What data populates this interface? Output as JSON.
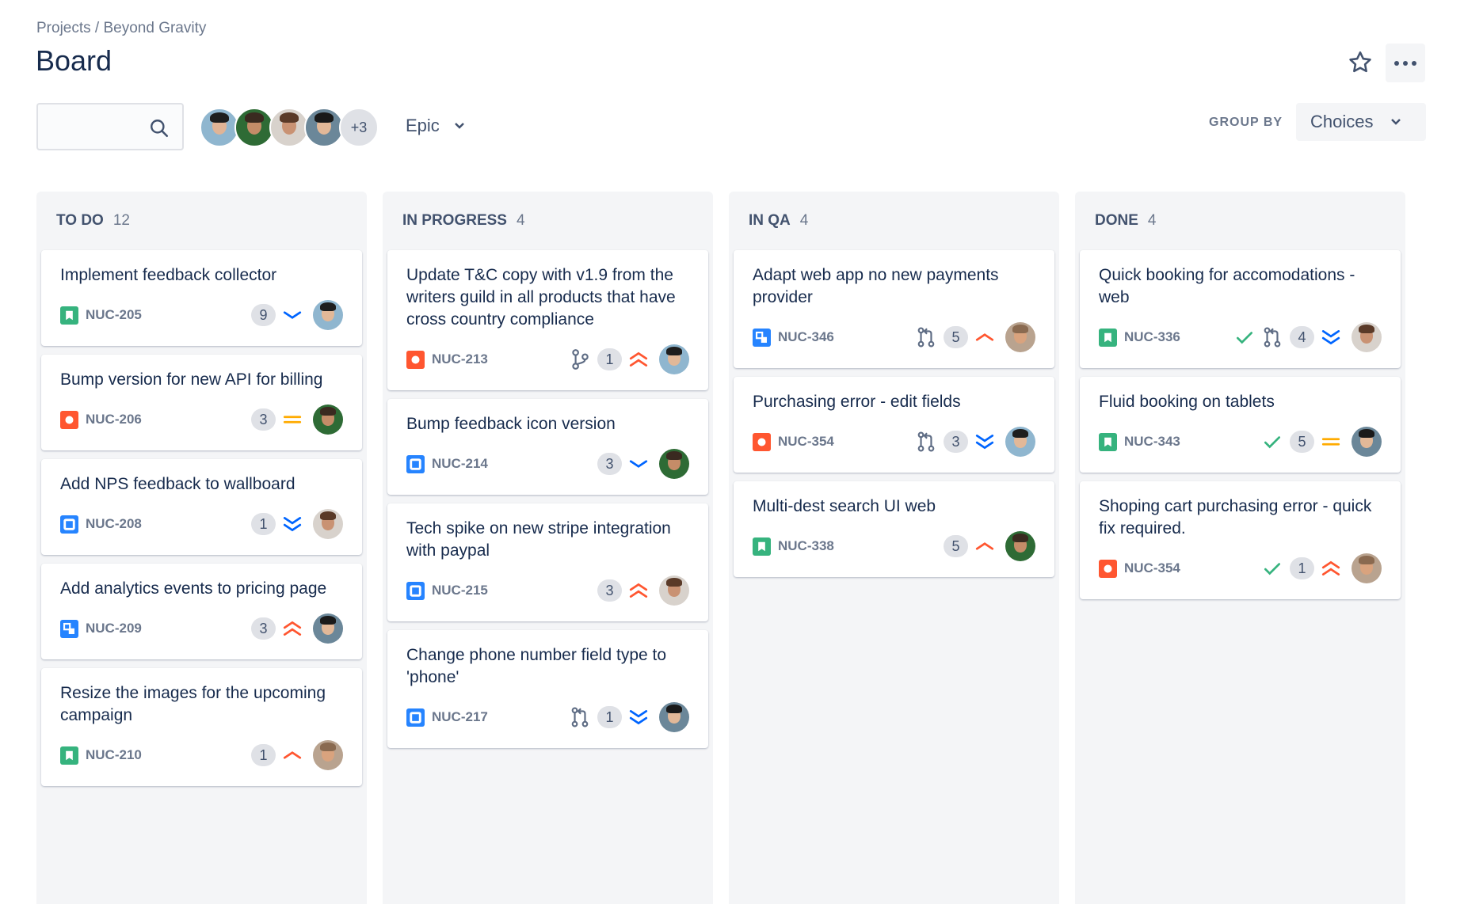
{
  "header": {
    "breadcrumb": "Projects / Beyond Gravity",
    "title": "Board",
    "search_placeholder": "",
    "avatars_more": "+3",
    "epic_label": "Epic",
    "group_by_label": "GROUP BY",
    "group_by_value": "Choices"
  },
  "colors": {
    "story": "#36b37e",
    "bug": "#ff5630",
    "task": "#2684ff",
    "subtask": "#2684ff",
    "high": "#ff5630",
    "low": "#0065ff",
    "medium": "#ffab00",
    "check": "#36b37e"
  },
  "columns": [
    {
      "name": "TO DO",
      "count": "12",
      "cards": [
        {
          "title": "Implement feedback collector",
          "type": "story",
          "key": "NUC-205",
          "count": "9",
          "priority": "low"
        },
        {
          "title": "Bump version for new API for billing",
          "type": "bug",
          "key": "NUC-206",
          "count": "3",
          "priority": "medium"
        },
        {
          "title": "Add NPS feedback to wallboard",
          "type": "task",
          "key": "NUC-208",
          "count": "1",
          "priority": "lowest"
        },
        {
          "title": "Add analytics events to pricing page",
          "type": "subtask",
          "key": "NUC-209",
          "count": "3",
          "priority": "highest"
        },
        {
          "title": "Resize the images for the upcoming campaign",
          "type": "story",
          "key": "NUC-210",
          "count": "1",
          "priority": "high"
        }
      ]
    },
    {
      "name": "IN PROGRESS",
      "count": "4",
      "cards": [
        {
          "title": "Update T&C copy with v1.9 from the writers guild in all products that have cross country compliance",
          "type": "bug",
          "key": "NUC-213",
          "dev": "branch",
          "count": "1",
          "priority": "highest"
        },
        {
          "title": "Bump feedback icon version",
          "type": "task",
          "key": "NUC-214",
          "count": "3",
          "priority": "low"
        },
        {
          "title": "Tech spike on new stripe integration with paypal",
          "type": "task",
          "key": "NUC-215",
          "count": "3",
          "priority": "highest"
        },
        {
          "title": "Change phone number field type to 'phone'",
          "type": "task",
          "key": "NUC-217",
          "dev": "pull-request",
          "count": "1",
          "priority": "lowest"
        }
      ]
    },
    {
      "name": "IN QA",
      "count": "4",
      "cards": [
        {
          "title": "Adapt web app no new payments provider",
          "type": "subtask",
          "key": "NUC-346",
          "dev": "pull-request",
          "count": "5",
          "priority": "high"
        },
        {
          "title": "Purchasing error - edit fields",
          "type": "bug",
          "key": "NUC-354",
          "dev": "pull-request",
          "count": "3",
          "priority": "lowest"
        },
        {
          "title": "Multi-dest search UI web",
          "type": "story",
          "key": "NUC-338",
          "count": "5",
          "priority": "high"
        }
      ]
    },
    {
      "name": "DONE",
      "count": "4",
      "cards": [
        {
          "title": "Quick booking for accomodations - web",
          "type": "story",
          "key": "NUC-336",
          "done": true,
          "dev": "pull-request",
          "count": "4",
          "priority": "lowest"
        },
        {
          "title": "Fluid booking on tablets",
          "type": "story",
          "key": "NUC-343",
          "done": true,
          "count": "5",
          "priority": "medium"
        },
        {
          "title": "Shoping cart purchasing error - quick fix required.",
          "type": "bug",
          "key": "NUC-354",
          "done": true,
          "count": "1",
          "priority": "highest"
        }
      ]
    }
  ]
}
